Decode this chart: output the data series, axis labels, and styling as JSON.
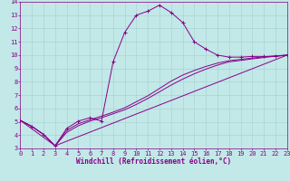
{
  "xlabel": "Windchill (Refroidissement éolien,°C)",
  "xlim": [
    0,
    23
  ],
  "ylim": [
    3,
    14
  ],
  "xticks": [
    0,
    1,
    2,
    3,
    4,
    5,
    6,
    7,
    8,
    9,
    10,
    11,
    12,
    13,
    14,
    15,
    16,
    17,
    18,
    19,
    20,
    21,
    22,
    23
  ],
  "yticks": [
    3,
    4,
    5,
    6,
    7,
    8,
    9,
    10,
    11,
    12,
    13,
    14
  ],
  "bg_color": "#c2e8e8",
  "line_color": "#880088",
  "grid_color": "#aad4d4",
  "curve_x": [
    0,
    1,
    2,
    3,
    4,
    5,
    6,
    7,
    8,
    9,
    10,
    11,
    12,
    13,
    14,
    15,
    16,
    17,
    18,
    19,
    20,
    21,
    22,
    23
  ],
  "curve_y": [
    5.1,
    4.65,
    4.05,
    3.2,
    4.5,
    5.05,
    5.3,
    5.05,
    9.5,
    11.7,
    13.0,
    13.3,
    13.75,
    13.2,
    12.45,
    11.0,
    10.45,
    10.0,
    9.85,
    9.85,
    9.9,
    9.9,
    9.9,
    10.0
  ],
  "line1_x": [
    0,
    1,
    2,
    3,
    4,
    5,
    6,
    7,
    8,
    9,
    10,
    11,
    12,
    13,
    14,
    15,
    16,
    17,
    18,
    19,
    20,
    21,
    22,
    23
  ],
  "line1_y": [
    5.1,
    4.65,
    4.05,
    3.2,
    4.2,
    4.7,
    5.05,
    5.3,
    5.6,
    5.9,
    6.3,
    6.75,
    7.25,
    7.75,
    8.2,
    8.6,
    8.95,
    9.25,
    9.5,
    9.6,
    9.72,
    9.82,
    9.92,
    10.0
  ],
  "line2_x": [
    0,
    1,
    2,
    3,
    4,
    5,
    6,
    7,
    8,
    9,
    10,
    11,
    12,
    13,
    14,
    15,
    16,
    17,
    18,
    19,
    20,
    21,
    22,
    23
  ],
  "line2_y": [
    5.1,
    4.65,
    4.05,
    3.2,
    4.35,
    4.85,
    5.15,
    5.42,
    5.72,
    6.05,
    6.5,
    6.95,
    7.5,
    8.05,
    8.5,
    8.85,
    9.15,
    9.4,
    9.58,
    9.68,
    9.78,
    9.87,
    9.95,
    10.0
  ],
  "line3_x": [
    0,
    3,
    23
  ],
  "line3_y": [
    5.1,
    3.2,
    10.0
  ]
}
